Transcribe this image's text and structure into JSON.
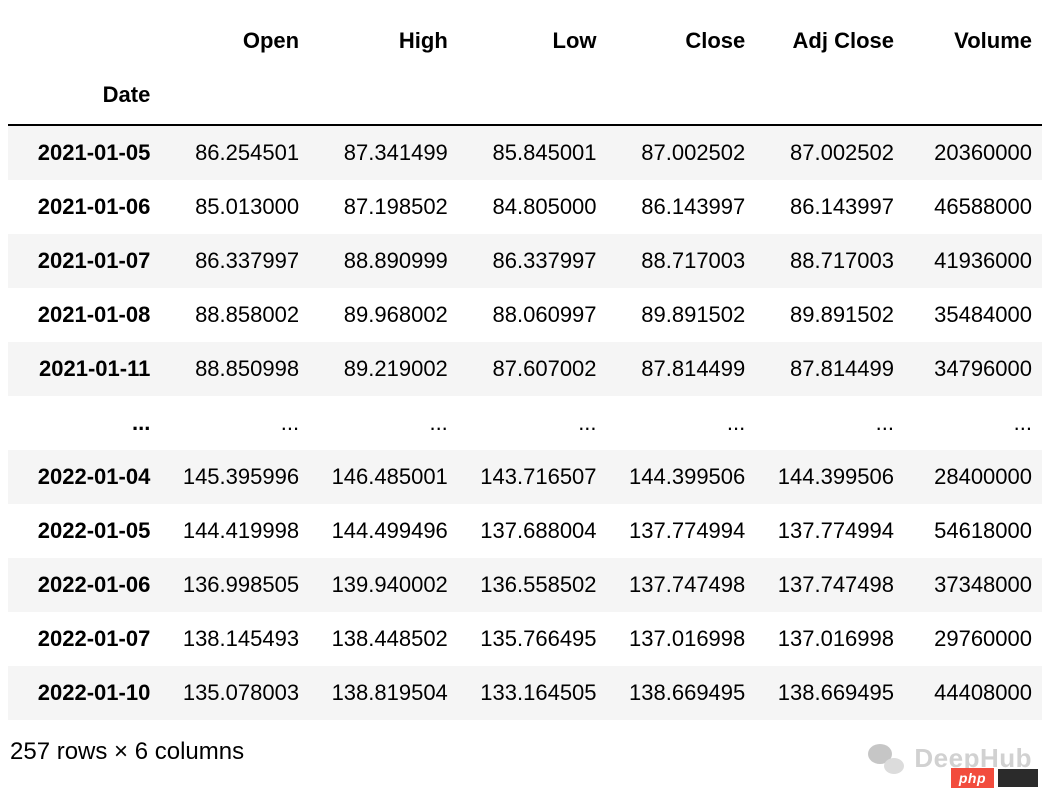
{
  "table": {
    "index_name": "Date",
    "columns": [
      "Open",
      "High",
      "Low",
      "Close",
      "Adj Close",
      "Volume"
    ],
    "col_widths_class": [
      "col-num",
      "col-num",
      "col-num",
      "col-num",
      "col-num",
      "col-vol"
    ],
    "stripe_colors": {
      "odd": "#f5f5f5",
      "even": "#ffffff"
    },
    "header_border_color": "#000000",
    "text_color": "#000000",
    "font_family": "Helvetica Neue",
    "header_fontsize": 22,
    "body_fontsize": 22,
    "rows": [
      {
        "label": "2021-01-05",
        "cells": [
          "86.254501",
          "87.341499",
          "85.845001",
          "87.002502",
          "87.002502",
          "20360000"
        ],
        "stripe": "odd"
      },
      {
        "label": "2021-01-06",
        "cells": [
          "85.013000",
          "87.198502",
          "84.805000",
          "86.143997",
          "86.143997",
          "46588000"
        ],
        "stripe": "even"
      },
      {
        "label": "2021-01-07",
        "cells": [
          "86.337997",
          "88.890999",
          "86.337997",
          "88.717003",
          "88.717003",
          "41936000"
        ],
        "stripe": "odd"
      },
      {
        "label": "2021-01-08",
        "cells": [
          "88.858002",
          "89.968002",
          "88.060997",
          "89.891502",
          "89.891502",
          "35484000"
        ],
        "stripe": "even"
      },
      {
        "label": "2021-01-11",
        "cells": [
          "88.850998",
          "89.219002",
          "87.607002",
          "87.814499",
          "87.814499",
          "34796000"
        ],
        "stripe": "odd"
      },
      {
        "label": "...",
        "cells": [
          "...",
          "...",
          "...",
          "...",
          "...",
          "..."
        ],
        "stripe": "even"
      },
      {
        "label": "2022-01-04",
        "cells": [
          "145.395996",
          "146.485001",
          "143.716507",
          "144.399506",
          "144.399506",
          "28400000"
        ],
        "stripe": "odd"
      },
      {
        "label": "2022-01-05",
        "cells": [
          "144.419998",
          "144.499496",
          "137.688004",
          "137.774994",
          "137.774994",
          "54618000"
        ],
        "stripe": "even"
      },
      {
        "label": "2022-01-06",
        "cells": [
          "136.998505",
          "139.940002",
          "136.558502",
          "137.747498",
          "137.747498",
          "37348000"
        ],
        "stripe": "odd"
      },
      {
        "label": "2022-01-07",
        "cells": [
          "138.145493",
          "138.448502",
          "135.766495",
          "137.016998",
          "137.016998",
          "29760000"
        ],
        "stripe": "even"
      },
      {
        "label": "2022-01-10",
        "cells": [
          "135.078003",
          "138.819504",
          "133.164505",
          "138.669495",
          "138.669495",
          "44408000"
        ],
        "stripe": "odd"
      }
    ]
  },
  "summary_text": "257 rows × 6 columns",
  "watermark": {
    "text": "DeepHub",
    "icon_name": "wechat-icon",
    "text_color": "#c9c9c9"
  },
  "php_badge": {
    "label": "php",
    "bg_color": "#f24c3d",
    "text_color": "#ffffff"
  }
}
